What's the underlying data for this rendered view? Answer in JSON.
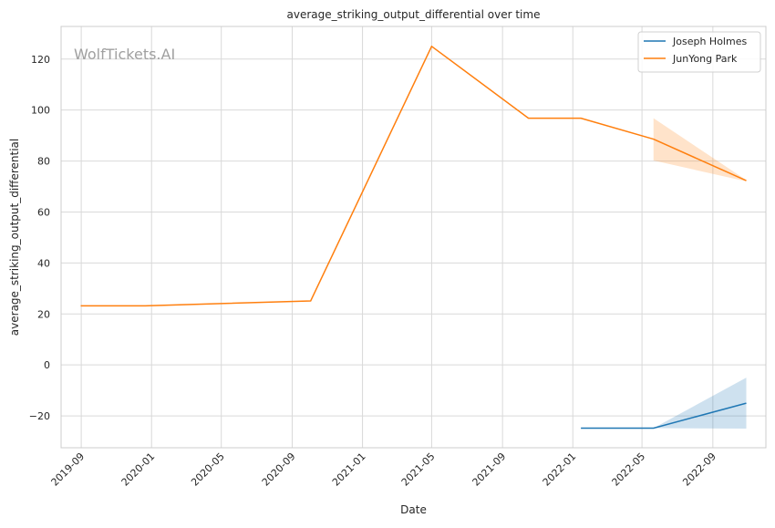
{
  "chart_data": {
    "type": "line",
    "title": "average_striking_output_differential over time",
    "xlabel": "Date",
    "ylabel": "average_striking_output_differential",
    "watermark": "WolfTickets.AI",
    "grid": true,
    "legend_position": "top-right",
    "xlim": [
      "2019-07-28",
      "2022-12-02"
    ],
    "ylim": [
      -32.5,
      132.8
    ],
    "x_ticks": [
      "2019-09",
      "2020-01",
      "2020-05",
      "2020-09",
      "2021-01",
      "2021-05",
      "2021-09",
      "2022-01",
      "2022-05",
      "2022-09"
    ],
    "y_ticks": [
      -20,
      0,
      20,
      40,
      60,
      80,
      100,
      120
    ],
    "series": [
      {
        "name": "Joseph Holmes",
        "color": "#1f77b4",
        "points": [
          {
            "x": "2022-01-15",
            "y": -24.8
          },
          {
            "x": "2022-05-21",
            "y": -24.8
          },
          {
            "x": "2022-10-29",
            "y": -15.0
          }
        ],
        "band": [
          {
            "x": "2022-05-21",
            "low": -24.8,
            "high": -24.8
          },
          {
            "x": "2022-10-29",
            "low": -25.0,
            "high": -5.0
          }
        ]
      },
      {
        "name": "JunYong Park",
        "color": "#ff7f0e",
        "points": [
          {
            "x": "2019-08-31",
            "y": 23.2
          },
          {
            "x": "2019-12-21",
            "y": 23.2
          },
          {
            "x": "2020-10-03",
            "y": 25.1
          },
          {
            "x": "2021-05-01",
            "y": 125.0
          },
          {
            "x": "2021-10-16",
            "y": 96.8
          },
          {
            "x": "2022-01-15",
            "y": 96.8
          },
          {
            "x": "2022-05-21",
            "y": 88.6
          },
          {
            "x": "2022-10-29",
            "y": 72.3
          }
        ],
        "band": [
          {
            "x": "2022-05-21",
            "low": 80.2,
            "high": 96.8
          },
          {
            "x": "2022-10-29",
            "low": 72.0,
            "high": 72.5
          }
        ]
      }
    ]
  }
}
